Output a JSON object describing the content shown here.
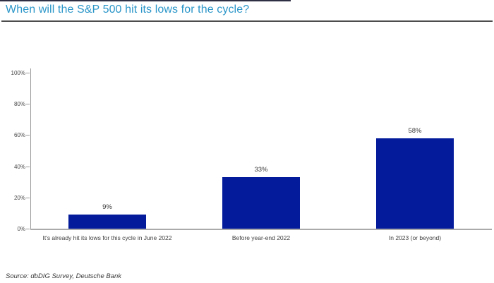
{
  "page": {
    "source": "Source: dbDIG Survey, Deutsche Bank"
  },
  "chart_data": {
    "type": "bar",
    "title": "When will the S&P 500 hit its lows for the cycle?",
    "categories": [
      "It's already hit its lows for this cycle in June 2022",
      "Before year-end 2022",
      "In 2023 (or beyond)"
    ],
    "values": [
      9,
      33,
      58
    ],
    "value_labels": [
      "9%",
      "33%",
      "58%"
    ],
    "xlabel": "",
    "ylabel": "",
    "ylim": [
      0,
      100
    ],
    "yticks": [
      0,
      20,
      40,
      60,
      80,
      100
    ],
    "ytick_labels": [
      "0%",
      "20%",
      "40%",
      "60%",
      "80%",
      "100%"
    ],
    "grid": false,
    "legend": null,
    "bar_color": "#041c9c"
  },
  "colors": {
    "title": "#2b96c9",
    "title_underline": "#4d4d4d",
    "top_border": "#2e2e44",
    "axis": "#9a9a9a",
    "bar": "#041c9c",
    "text": "#3a3a3a"
  }
}
